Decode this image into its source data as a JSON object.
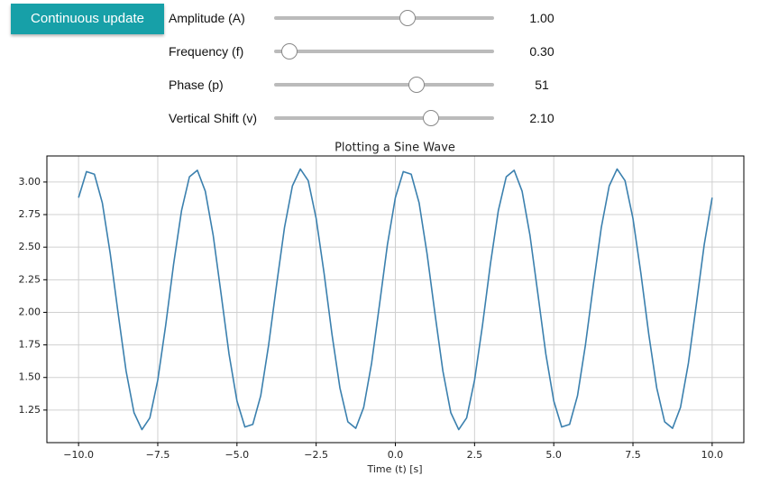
{
  "button": {
    "label": "Continuous update"
  },
  "controls": [
    {
      "label": "Amplitude (A)",
      "value": "1.00"
    },
    {
      "label": "Frequency (f)",
      "value": "0.30"
    },
    {
      "label": "Phase (p)",
      "value": "51"
    },
    {
      "label": "Vertical Shift (v)",
      "value": "2.10"
    }
  ],
  "chart_data": {
    "type": "line",
    "title": "Plotting a Sine Wave",
    "x_label": "Time (t) [s]",
    "color": "#3b80ae",
    "grid": true,
    "x": [
      -10,
      -9.75,
      -9.5,
      -9.25,
      -9,
      -8.75,
      -8.5,
      -8.25,
      -8,
      -7.75,
      -7.5,
      -7.25,
      -7,
      -6.75,
      -6.5,
      -6.25,
      -6,
      -5.75,
      -5.5,
      -5.25,
      -5,
      -4.75,
      -4.5,
      -4.25,
      -4,
      -3.75,
      -3.5,
      -3.25,
      -3,
      -2.75,
      -2.5,
      -2.25,
      -2,
      -1.75,
      -1.5,
      -1.25,
      -1,
      -0.75,
      -0.5,
      -0.25,
      0,
      0.25,
      0.5,
      0.75,
      1,
      1.25,
      1.5,
      1.75,
      2,
      2.25,
      2.5,
      2.75,
      3,
      3.25,
      3.5,
      3.75,
      4,
      4.25,
      4.5,
      4.75,
      5,
      5.25,
      5.5,
      5.75,
      6,
      6.25,
      6.5,
      6.75,
      7,
      7.25,
      7.5,
      7.75,
      8,
      8.25,
      8.5,
      8.75,
      9,
      9.25,
      9.5,
      9.75,
      10
    ],
    "values": [
      2.88,
      3.08,
      3.06,
      2.84,
      2.45,
      1.99,
      1.55,
      1.23,
      1.1,
      1.19,
      1.48,
      1.9,
      2.37,
      2.78,
      3.04,
      3.09,
      2.93,
      2.59,
      2.14,
      1.68,
      1.32,
      1.12,
      1.14,
      1.36,
      1.75,
      2.21,
      2.65,
      2.97,
      3.1,
      3.01,
      2.72,
      2.3,
      1.83,
      1.42,
      1.16,
      1.11,
      1.27,
      1.61,
      2.06,
      2.52,
      2.88,
      3.08,
      3.06,
      2.84,
      2.45,
      1.99,
      1.55,
      1.23,
      1.1,
      1.19,
      1.48,
      1.9,
      2.37,
      2.78,
      3.04,
      3.09,
      2.93,
      2.59,
      2.14,
      1.68,
      1.32,
      1.12,
      1.14,
      1.36,
      1.75,
      2.21,
      2.65,
      2.97,
      3.1,
      3.01,
      2.72,
      2.3,
      1.83,
      1.42,
      1.16,
      1.11,
      1.27,
      1.61,
      2.06,
      2.52,
      2.88
    ],
    "xlim": [
      -11,
      11
    ],
    "ylim": [
      1.0,
      3.2
    ],
    "xticks": [
      {
        "value": -10,
        "label": "−10.0"
      },
      {
        "value": -7.5,
        "label": "−7.5"
      },
      {
        "value": -5,
        "label": "−5.0"
      },
      {
        "value": -2.5,
        "label": "−2.5"
      },
      {
        "value": 0,
        "label": "0.0"
      },
      {
        "value": 2.5,
        "label": "2.5"
      },
      {
        "value": 5,
        "label": "5.0"
      },
      {
        "value": 7.5,
        "label": "7.5"
      },
      {
        "value": 10,
        "label": "10.0"
      }
    ],
    "yticks": [
      {
        "value": 1.25,
        "label": "1.25"
      },
      {
        "value": 1.5,
        "label": "1.50"
      },
      {
        "value": 1.75,
        "label": "1.75"
      },
      {
        "value": 2,
        "label": "2.00"
      },
      {
        "value": 2.25,
        "label": "2.25"
      },
      {
        "value": 2.5,
        "label": "2.50"
      },
      {
        "value": 2.75,
        "label": "2.75"
      },
      {
        "value": 3,
        "label": "3.00"
      }
    ]
  }
}
